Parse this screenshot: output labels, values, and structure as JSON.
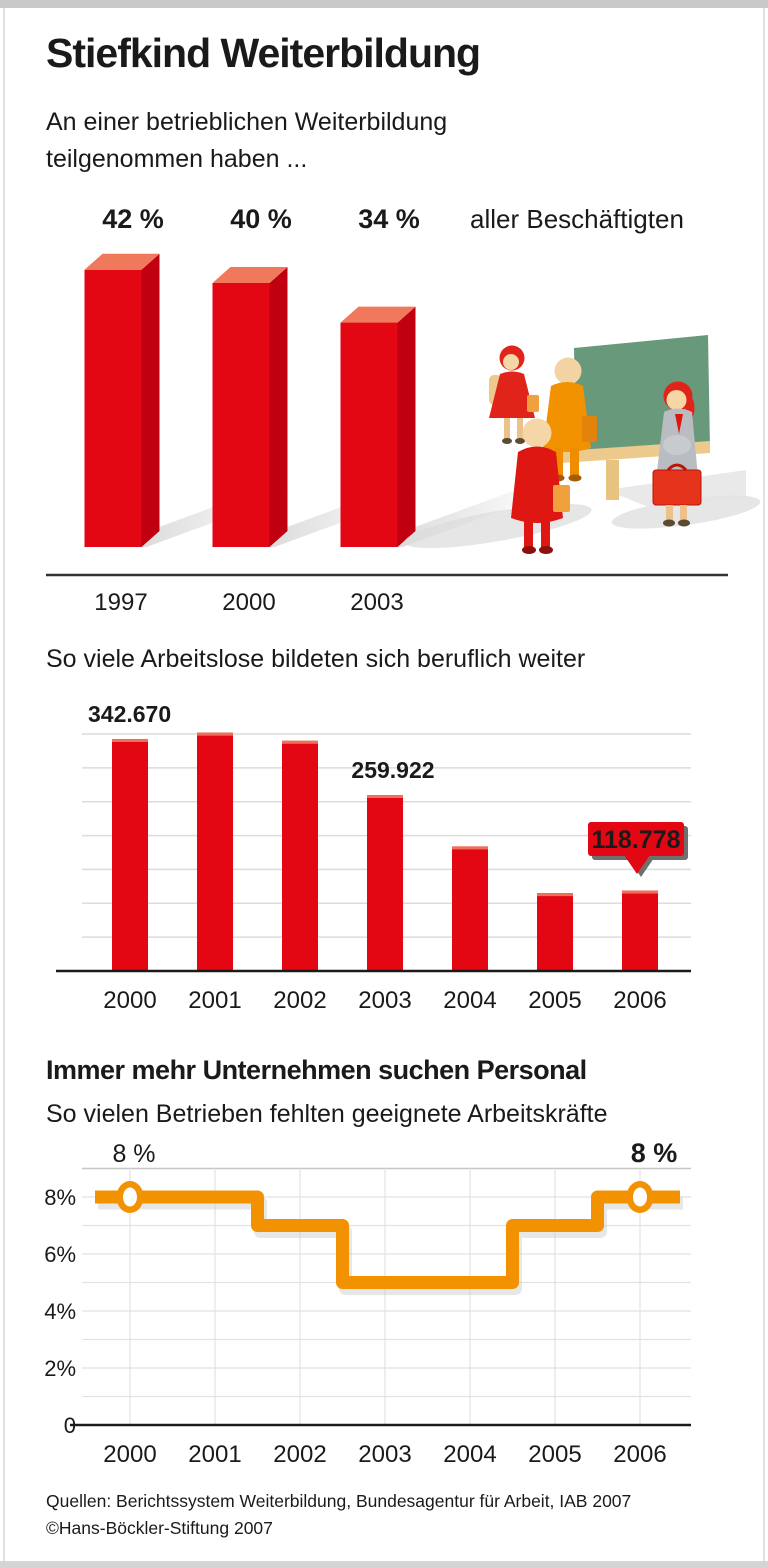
{
  "header": {
    "title": "Stiefkind Weiterbildung",
    "intro": "An einer betrieblichen Weiterbildung\nteilgenommen haben ..."
  },
  "chart_data": [
    {
      "id": "participation",
      "type": "bar",
      "style": "3d",
      "title": "An einer betrieblichen Weiterbildung teilgenommen haben ...",
      "categories": [
        "1997",
        "2000",
        "2003"
      ],
      "values": [
        42,
        40,
        34
      ],
      "value_labels": [
        "42 %",
        "40 %",
        "34 %"
      ],
      "unit": "%",
      "annotation": "aller Beschäftigten",
      "bar_color": "#e30613",
      "bar_top_color": "#f0795b",
      "bar_side_color": "#c00011"
    },
    {
      "id": "unemployed-training",
      "type": "bar",
      "title": "So viele Arbeitslose bildeten sich beruflich weiter",
      "categories": [
        "2000",
        "2001",
        "2002",
        "2003",
        "2004",
        "2005",
        "2006"
      ],
      "values": [
        342670,
        352000,
        340000,
        259922,
        184000,
        115000,
        118778
      ],
      "labeled_points": [
        {
          "category": "2000",
          "text": "342.670",
          "style": "plain"
        },
        {
          "category": "2003",
          "text": "259.922",
          "style": "plain"
        },
        {
          "category": "2006",
          "text": "118.778",
          "style": "callout"
        }
      ],
      "ylim": [
        0,
        350000
      ],
      "gridline_step": 50000,
      "grid": true,
      "bar_color": "#e30613",
      "bar_cap_color": "#ef7059",
      "callout_bg": "#e30613",
      "callout_text_color": "#ffffff"
    },
    {
      "id": "skill-shortage",
      "type": "line",
      "style": "step",
      "title": "Immer mehr Unternehmen suchen Personal",
      "subtitle": "So vielen Betrieben fehlten geeignete Arbeitskräfte",
      "categories": [
        "2000",
        "2001",
        "2002",
        "2003",
        "2004",
        "2005",
        "2006"
      ],
      "values": [
        8,
        8,
        7,
        5,
        5,
        7,
        8
      ],
      "unit": "%",
      "ylim": [
        0,
        9
      ],
      "ylabels": [
        {
          "text": "8%",
          "value": 8
        },
        {
          "text": "6%",
          "value": 6
        },
        {
          "text": "4%",
          "value": 4
        },
        {
          "text": "2%",
          "value": 2
        },
        {
          "text": "0",
          "value": 0
        }
      ],
      "annotations": [
        {
          "category": "2000",
          "text": "8 %",
          "bold": false
        },
        {
          "category": "2006",
          "text": "8 %",
          "bold": true
        }
      ],
      "grid": true,
      "line_color": "#f39200",
      "marker_fill": "#ffffff"
    }
  ],
  "footer": {
    "sources": "Quellen: Berichtssystem Weiterbildung, Bundesagentur für Arbeit, IAB 2007",
    "copyright": "©Hans-Böckler-Stiftung 2007"
  }
}
